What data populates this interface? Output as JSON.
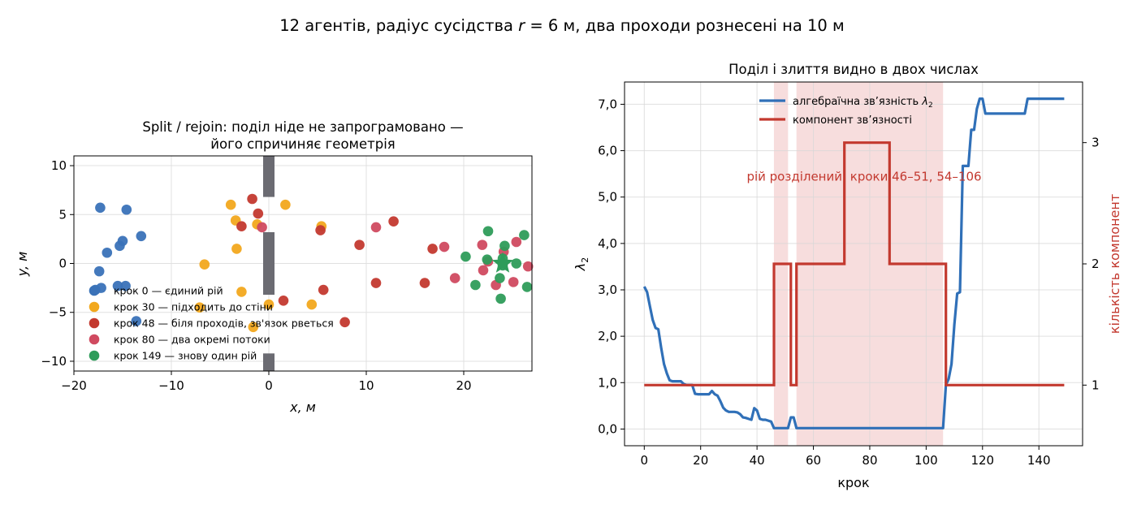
{
  "figure": {
    "title": "12 агентів, радіус сусідства r = 6 м, два проходи рознесені на 10 м",
    "title_parts": [
      "12 агентів, радіус сусідства ",
      "r",
      " = 6 м, два проходи рознесені на 10 м"
    ]
  },
  "chart_data": [
    {
      "type": "scatter",
      "title_lines": [
        "Split / rejoin: поділ ніде не запрограмовано —",
        "його спричиняє геометрія"
      ],
      "xlabel": "x, м",
      "ylabel": "y, м",
      "xlim": [
        -20,
        27
      ],
      "ylim": [
        -11,
        11
      ],
      "xticks": [
        -20,
        -10,
        0,
        10,
        20
      ],
      "xtick_labels": [
        "−20",
        "−10",
        "0",
        "10",
        "20"
      ],
      "yticks": [
        -10,
        -5,
        0,
        5,
        10
      ],
      "ytick_labels": [
        "−10",
        "−5",
        "0",
        "5",
        "10"
      ],
      "grid": true,
      "legend_position": "lower-left",
      "wall": {
        "x": 0,
        "segments": [
          [
            6.8,
            11
          ],
          [
            -3.2,
            3.2
          ],
          [
            -11,
            -9.2
          ]
        ],
        "color": "#6b6b72"
      },
      "series": [
        {
          "name": "крок 0 — єдиний рій",
          "color": "#3a72b8",
          "points": [
            [
              -17.3,
              5.7
            ],
            [
              -14.6,
              5.5
            ],
            [
              -13.1,
              2.8
            ],
            [
              -15.0,
              2.3
            ],
            [
              -15.3,
              1.8
            ],
            [
              -16.6,
              1.1
            ],
            [
              -17.4,
              -0.8
            ],
            [
              -17.8,
              -2.7
            ],
            [
              -17.2,
              -2.5
            ],
            [
              -15.5,
              -2.3
            ],
            [
              -14.7,
              -2.3
            ],
            [
              -13.6,
              -5.9
            ]
          ]
        },
        {
          "name": "крок 30 — підходить до стіни",
          "color": "#f2a81d",
          "points": [
            [
              -3.9,
              6.0
            ],
            [
              1.7,
              6.0
            ],
            [
              -3.4,
              4.4
            ],
            [
              -1.2,
              4.0
            ],
            [
              -3.3,
              1.5
            ],
            [
              -6.6,
              -0.1
            ],
            [
              -2.8,
              -2.9
            ],
            [
              -7.1,
              -4.5
            ],
            [
              0.0,
              -4.2
            ],
            [
              5.4,
              3.8
            ],
            [
              4.4,
              -4.2
            ],
            [
              -1.6,
              -6.5
            ]
          ]
        },
        {
          "name": "крок 48 — біля проходів, зв'язок рветься",
          "color": "#c3392f",
          "points": [
            [
              -1.7,
              6.6
            ],
            [
              -1.1,
              5.1
            ],
            [
              -2.8,
              3.8
            ],
            [
              5.3,
              3.4
            ],
            [
              9.3,
              1.9
            ],
            [
              12.8,
              4.3
            ],
            [
              11.0,
              -2.0
            ],
            [
              16.0,
              -2.0
            ],
            [
              16.8,
              1.5
            ],
            [
              5.6,
              -2.7
            ],
            [
              1.5,
              -3.8
            ],
            [
              7.8,
              -6.0
            ]
          ]
        },
        {
          "name": "крок 80 — два окремі потоки",
          "color": "#d04a60",
          "points": [
            [
              -0.7,
              3.7
            ],
            [
              11.0,
              3.7
            ],
            [
              18.0,
              1.7
            ],
            [
              19.1,
              -1.5
            ],
            [
              21.9,
              1.9
            ],
            [
              22.0,
              -0.7
            ],
            [
              23.3,
              -2.2
            ],
            [
              24.1,
              1.2
            ],
            [
              25.4,
              2.2
            ],
            [
              25.1,
              -1.9
            ],
            [
              26.6,
              -0.3
            ],
            [
              22.5,
              0.2
            ]
          ]
        },
        {
          "name": "крок 149 — знову один рій",
          "color": "#2e9c5a",
          "points": [
            [
              22.5,
              3.3
            ],
            [
              20.2,
              0.7
            ],
            [
              22.4,
              0.4
            ],
            [
              24.2,
              1.8
            ],
            [
              26.2,
              2.9
            ],
            [
              25.4,
              0.0
            ],
            [
              23.7,
              -1.5
            ],
            [
              21.2,
              -2.2
            ],
            [
              23.8,
              -3.6
            ],
            [
              26.5,
              -2.4
            ],
            [
              24.0,
              0.5
            ],
            [
              24.0,
              -0.2
            ]
          ]
        }
      ],
      "centroid": {
        "point": [
          24.0,
          0.0
        ],
        "color": "#2e9c5a",
        "marker": "star"
      }
    },
    {
      "type": "line",
      "title": "Поділ і злиття видно в двох числах",
      "xlabel": "крок",
      "ylabel_parts": [
        "λ",
        "2"
      ],
      "ylabel_right": "кількість компонент",
      "xlim": [
        -7,
        155.5
      ],
      "ylim": [
        -0.36,
        7.48
      ],
      "ylim_right": [
        0.5,
        3.5
      ],
      "xticks": [
        0,
        20,
        40,
        60,
        80,
        100,
        120,
        140
      ],
      "xtick_labels": [
        "0",
        "20",
        "40",
        "60",
        "80",
        "100",
        "120",
        "140"
      ],
      "yticks": [
        0,
        1,
        2,
        3,
        4,
        5,
        6,
        7
      ],
      "ytick_labels": [
        "0,0",
        "1,0",
        "2,0",
        "3,0",
        "4,0",
        "5,0",
        "6,0",
        "7,0"
      ],
      "yticks_right": [
        1,
        2,
        3
      ],
      "ytick_labels_right": [
        "1",
        "2",
        "3"
      ],
      "grid": true,
      "legend_position": "upper-center",
      "shaded_ranges": [
        [
          46,
          51
        ],
        [
          54,
          106
        ]
      ],
      "shade_color": "#f4cfcf",
      "annotation": {
        "text": "рій розділений: кроки 46–51, 54–106",
        "x": 78,
        "y": 5.35,
        "color": "#c3392f"
      },
      "series": [
        {
          "name_parts": [
            "алгебраїчна зв’язність ",
            "λ",
            "2"
          ],
          "color": "#3070b8",
          "axis": "left",
          "points": [
            [
              0,
              3.07
            ],
            [
              1,
              2.95
            ],
            [
              2,
              2.65
            ],
            [
              3,
              2.35
            ],
            [
              4,
              2.18
            ],
            [
              5,
              2.15
            ],
            [
              6,
              1.75
            ],
            [
              7,
              1.4
            ],
            [
              8,
              1.2
            ],
            [
              9,
              1.05
            ],
            [
              10,
              1.03
            ],
            [
              11,
              1.03
            ],
            [
              12,
              1.03
            ],
            [
              13,
              1.03
            ],
            [
              14,
              0.97
            ],
            [
              15,
              0.95
            ],
            [
              16,
              0.95
            ],
            [
              17,
              0.95
            ],
            [
              18,
              0.76
            ],
            [
              19,
              0.75
            ],
            [
              20,
              0.75
            ],
            [
              21,
              0.75
            ],
            [
              22,
              0.75
            ],
            [
              23,
              0.75
            ],
            [
              24,
              0.82
            ],
            [
              25,
              0.75
            ],
            [
              26,
              0.72
            ],
            [
              27,
              0.6
            ],
            [
              28,
              0.46
            ],
            [
              29,
              0.4
            ],
            [
              30,
              0.37
            ],
            [
              31,
              0.37
            ],
            [
              32,
              0.37
            ],
            [
              33,
              0.36
            ],
            [
              34,
              0.32
            ],
            [
              35,
              0.25
            ],
            [
              36,
              0.24
            ],
            [
              37,
              0.22
            ],
            [
              38,
              0.2
            ],
            [
              39,
              0.45
            ],
            [
              40,
              0.4
            ],
            [
              41,
              0.22
            ],
            [
              42,
              0.2
            ],
            [
              43,
              0.2
            ],
            [
              44,
              0.18
            ],
            [
              45,
              0.16
            ],
            [
              46,
              0.02
            ],
            [
              47,
              0.02
            ],
            [
              48,
              0.02
            ],
            [
              49,
              0.02
            ],
            [
              50,
              0.02
            ],
            [
              51,
              0.02
            ],
            [
              52,
              0.25
            ],
            [
              53,
              0.25
            ],
            [
              54,
              0.02
            ],
            [
              60,
              0.02
            ],
            [
              80,
              0.02
            ],
            [
              100,
              0.02
            ],
            [
              106,
              0.02
            ],
            [
              107,
              0.95
            ],
            [
              108,
              1.08
            ],
            [
              109,
              1.4
            ],
            [
              110,
              2.25
            ],
            [
              111,
              2.92
            ],
            [
              112,
              2.95
            ],
            [
              113,
              5.67
            ],
            [
              114,
              5.67
            ],
            [
              115,
              5.67
            ],
            [
              116,
              6.45
            ],
            [
              117,
              6.45
            ],
            [
              118,
              6.9
            ],
            [
              119,
              7.12
            ],
            [
              120,
              7.12
            ],
            [
              121,
              6.8
            ],
            [
              122,
              6.8
            ],
            [
              130,
              6.8
            ],
            [
              134,
              6.8
            ],
            [
              135,
              6.8
            ],
            [
              136,
              7.12
            ],
            [
              140,
              7.12
            ],
            [
              149,
              7.12
            ]
          ]
        },
        {
          "name": "компонент зв’язності",
          "color": "#c3392f",
          "axis": "right",
          "steps": [
            [
              0,
              1
            ],
            [
              46,
              2
            ],
            [
              52,
              1
            ],
            [
              54,
              2
            ],
            [
              71,
              3
            ],
            [
              87,
              2
            ],
            [
              107,
              1
            ],
            [
              149,
              1
            ]
          ]
        }
      ]
    }
  ]
}
